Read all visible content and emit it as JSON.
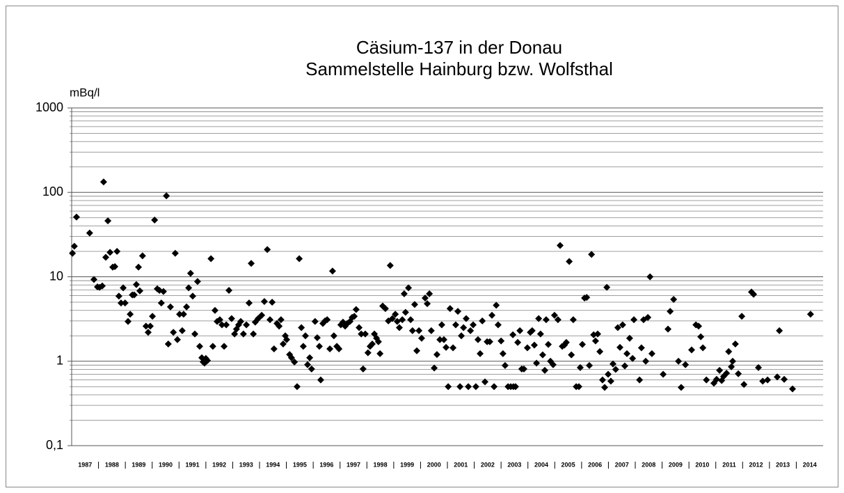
{
  "chart_data": {
    "type": "scatter",
    "title": [
      "Cäsium-137 in der Donau",
      "Sammelstelle Hainburg bzw. Wolfsthal"
    ],
    "y_label": "mBq/l",
    "color": "#000000",
    "log_y": true,
    "grid": true,
    "xlim": [
      1987,
      2015
    ],
    "ylim": [
      0.1,
      1000
    ],
    "yticks": [
      {
        "value": 0.1,
        "label": "0,1"
      },
      1,
      10,
      100,
      1000
    ],
    "minor_yticks": [
      0.2,
      0.3,
      0.4,
      0.5,
      0.6,
      0.7,
      0.8,
      0.9,
      2,
      3,
      4,
      5,
      6,
      7,
      8,
      9,
      20,
      30,
      40,
      50,
      60,
      70,
      80,
      90,
      200,
      300,
      400,
      500,
      600,
      700,
      800,
      900
    ],
    "xticks": [
      {
        "value": 1987.5,
        "label": "1987"
      },
      {
        "value": 1988.5,
        "label": "1988"
      },
      {
        "value": 1989.5,
        "label": "1989"
      },
      {
        "value": 1990.5,
        "label": "1990"
      },
      {
        "value": 1991.5,
        "label": "1991"
      },
      {
        "value": 1992.5,
        "label": "1992"
      },
      {
        "value": 1993.5,
        "label": "1993"
      },
      {
        "value": 1994.5,
        "label": "1994"
      },
      {
        "value": 1995.5,
        "label": "1995"
      },
      {
        "value": 1996.5,
        "label": "1996"
      },
      {
        "value": 1997.5,
        "label": "1997"
      },
      {
        "value": 1998.5,
        "label": "1998"
      },
      {
        "value": 1999.5,
        "label": "1999"
      },
      {
        "value": 2000.5,
        "label": "2000"
      },
      {
        "value": 2001.5,
        "label": "2001"
      },
      {
        "value": 2002.5,
        "label": "2002"
      },
      {
        "value": 2003.5,
        "label": "2003"
      },
      {
        "value": 2004.5,
        "label": "2004"
      },
      {
        "value": 2005.5,
        "label": "2005"
      },
      {
        "value": 2006.5,
        "label": "2006"
      },
      {
        "value": 2007.5,
        "label": "2007"
      },
      {
        "value": 2008.5,
        "label": "2008"
      },
      {
        "value": 2009.5,
        "label": "2009"
      },
      {
        "value": 2010.5,
        "label": "2010"
      },
      {
        "value": 2011.5,
        "label": "2011"
      },
      {
        "value": 2012.5,
        "label": "2012"
      },
      {
        "value": 2013.5,
        "label": "2013"
      },
      {
        "value": 2014.5,
        "label": "2014"
      }
    ],
    "x": [
      1987.03,
      1987.1,
      1987.18,
      1987.67,
      1987.83,
      1987.96,
      1988.04,
      1988.14,
      1988.19,
      1988.27,
      1988.35,
      1988.43,
      1988.53,
      1988.61,
      1988.69,
      1988.76,
      1988.84,
      1988.92,
      1988.99,
      1989.1,
      1989.18,
      1989.26,
      1989.33,
      1989.41,
      1989.49,
      1989.54,
      1989.64,
      1989.77,
      1989.85,
      1989.93,
      1990.01,
      1990.09,
      1990.19,
      1990.27,
      1990.34,
      1990.42,
      1990.53,
      1990.6,
      1990.68,
      1990.79,
      1990.86,
      1990.94,
      1991.02,
      1991.12,
      1991.17,
      1991.28,
      1991.36,
      1991.43,
      1991.51,
      1991.59,
      1991.69,
      1991.77,
      1991.85,
      1991.9,
      1991.95,
      1992.0,
      1992.06,
      1992.19,
      1992.26,
      1992.34,
      1992.42,
      1992.52,
      1992.6,
      1992.68,
      1992.76,
      1992.86,
      1992.96,
      1993.07,
      1993.14,
      1993.22,
      1993.3,
      1993.4,
      1993.51,
      1993.61,
      1993.69,
      1993.77,
      1993.84,
      1993.95,
      1994.08,
      1994.18,
      1994.29,
      1994.39,
      1994.47,
      1994.54,
      1994.65,
      1994.73,
      1994.8,
      1994.88,
      1994.96,
      1995.01,
      1995.12,
      1995.19,
      1995.3,
      1995.4,
      1995.48,
      1995.56,
      1995.63,
      1995.71,
      1995.79,
      1995.87,
      1995.94,
      1996.07,
      1996.15,
      1996.23,
      1996.28,
      1996.36,
      1996.44,
      1996.52,
      1996.62,
      1996.72,
      1996.77,
      1996.88,
      1996.96,
      1997.03,
      1997.11,
      1997.19,
      1997.27,
      1997.37,
      1997.45,
      1997.53,
      1997.6,
      1997.71,
      1997.79,
      1997.86,
      1997.94,
      1998.04,
      1998.12,
      1998.2,
      1998.28,
      1998.36,
      1998.43,
      1998.49,
      1998.59,
      1998.69,
      1998.8,
      1998.87,
      1998.95,
      1999.06,
      1999.13,
      1999.21,
      1999.32,
      1999.39,
      1999.44,
      1999.55,
      1999.63,
      1999.7,
      1999.78,
      1999.86,
      1999.94,
      2000.04,
      2000.17,
      2000.25,
      2000.33,
      2000.4,
      2000.51,
      2000.61,
      2000.72,
      2000.79,
      2000.87,
      2000.95,
      2001.03,
      2001.1,
      2001.21,
      2001.31,
      2001.39,
      2001.47,
      2001.52,
      2001.6,
      2001.7,
      2001.78,
      2001.86,
      2001.96,
      2002.06,
      2002.14,
      2002.22,
      2002.3,
      2002.4,
      2002.48,
      2002.58,
      2002.66,
      2002.74,
      2002.82,
      2002.89,
      2003.0,
      2003.07,
      2003.15,
      2003.26,
      2003.36,
      2003.44,
      2003.46,
      2003.54,
      2003.62,
      2003.7,
      2003.77,
      2003.85,
      2003.98,
      2004.09,
      2004.16,
      2004.24,
      2004.32,
      2004.4,
      2004.47,
      2004.55,
      2004.63,
      2004.68,
      2004.76,
      2004.84,
      2004.94,
      2004.99,
      2005.12,
      2005.2,
      2005.28,
      2005.36,
      2005.43,
      2005.54,
      2005.62,
      2005.69,
      2005.8,
      2005.9,
      2005.95,
      2006.03,
      2006.11,
      2006.19,
      2006.29,
      2006.37,
      2006.45,
      2006.52,
      2006.6,
      2006.68,
      2006.78,
      2006.86,
      2006.94,
      2006.99,
      2007.09,
      2007.17,
      2007.27,
      2007.35,
      2007.43,
      2007.53,
      2007.61,
      2007.69,
      2007.79,
      2007.9,
      2007.95,
      2008.16,
      2008.23,
      2008.31,
      2008.39,
      2008.47,
      2008.55,
      2008.62,
      2009.04,
      2009.22,
      2009.3,
      2009.43,
      2009.61,
      2009.71,
      2009.87,
      2010.1,
      2010.26,
      2010.36,
      2010.44,
      2010.52,
      2010.65,
      2010.93,
      2011.03,
      2011.14,
      2011.22,
      2011.29,
      2011.4,
      2011.48,
      2011.58,
      2011.63,
      2011.73,
      2011.84,
      2011.97,
      2012.05,
      2012.33,
      2012.41,
      2012.59,
      2012.75,
      2012.93,
      2013.29,
      2013.37,
      2013.55,
      2013.86,
      2014.53
    ],
    "values": [
      19,
      23,
      51,
      33,
      9.3,
      7.6,
      7.5,
      7.8,
      133,
      17,
      46,
      19.5,
      13,
      13.2,
      20,
      5.9,
      4.9,
      7.4,
      4.9,
      2.96,
      3.6,
      6.1,
      6.1,
      8.1,
      13,
      6.8,
      17.7,
      2.6,
      2.2,
      2.6,
      3.4,
      47,
      7.2,
      6.9,
      4.9,
      6.7,
      91,
      1.6,
      4.4,
      2.2,
      19,
      1.8,
      3.6,
      2.3,
      3.6,
      4.4,
      7.4,
      11,
      5.9,
      2.1,
      8.8,
      1.5,
      1.1,
      0.98,
      0.95,
      1.08,
      1.02,
      16.4,
      1.5,
      4,
      2.96,
      3.1,
      2.7,
      1.5,
      2.7,
      6.9,
      3.2,
      2.1,
      2.4,
      2.7,
      2.96,
      2.1,
      2.7,
      4.9,
      14.4,
      2.1,
      2.9,
      3.2,
      3.5,
      5.1,
      21,
      3.1,
      5,
      1.4,
      2.8,
      2.6,
      3.1,
      1.6,
      2,
      1.8,
      1.2,
      1.1,
      0.98,
      0.5,
      16.4,
      2.5,
      1.5,
      2,
      0.91,
      1.1,
      0.81,
      2.96,
      1.9,
      1.5,
      0.6,
      2.8,
      3,
      3.1,
      1.4,
      11.7,
      2,
      1.5,
      1.4,
      2.7,
      2.9,
      2.6,
      2.8,
      2.96,
      3.3,
      3.4,
      4.1,
      2.5,
      2.1,
      0.81,
      2.1,
      1.26,
      1.5,
      1.6,
      2.1,
      1.87,
      1.7,
      1.23,
      4.5,
      4.2,
      3,
      13.6,
      3.2,
      3.6,
      2.96,
      2.5,
      3.1,
      6.3,
      3.8,
      7.4,
      3.1,
      2.3,
      4.7,
      1.33,
      2.3,
      1.87,
      5.6,
      4.8,
      6.3,
      2.3,
      0.83,
      1.2,
      1.8,
      2.7,
      1.8,
      1.46,
      0.5,
      4.2,
      1.44,
      2.7,
      3.9,
      0.5,
      2,
      2.5,
      3.2,
      0.5,
      2.3,
      2.7,
      0.5,
      1.8,
      1.23,
      3,
      0.57,
      1.7,
      1.7,
      3.5,
      0.5,
      4.6,
      2.7,
      1.74,
      1.23,
      0.89,
      0.5,
      0.5,
      2.06,
      0.5,
      0.5,
      1.67,
      2.3,
      0.81,
      0.81,
      1.44,
      2.2,
      2.3,
      1.55,
      0.95,
      3.2,
      2.1,
      1.19,
      0.78,
      3.1,
      1.58,
      1,
      0.91,
      3.5,
      3.1,
      23.5,
      1.5,
      1.55,
      1.67,
      15.2,
      1.19,
      3.1,
      0.5,
      0.5,
      0.84,
      1.58,
      5.6,
      5.7,
      0.89,
      18.4,
      2.06,
      1.74,
      2.1,
      1.3,
      0.6,
      0.49,
      7.5,
      0.7,
      0.58,
      0.93,
      0.8,
      2.5,
      1.46,
      2.7,
      0.88,
      1.23,
      1.87,
      1.08,
      3.1,
      0.6,
      1.44,
      3.1,
      1,
      3.3,
      10,
      1.23,
      0.7,
      2.4,
      3.9,
      5.4,
      1,
      0.49,
      0.91,
      1.36,
      2.7,
      2.6,
      1.95,
      1.44,
      0.6,
      0.55,
      0.61,
      0.78,
      0.59,
      0.66,
      0.72,
      1.3,
      0.86,
      1,
      1.6,
      0.71,
      3.4,
      0.53,
      6.6,
      6.2,
      0.84,
      0.58,
      0.6,
      0.65,
      2.3,
      0.61,
      0.47,
      3.6
    ]
  }
}
